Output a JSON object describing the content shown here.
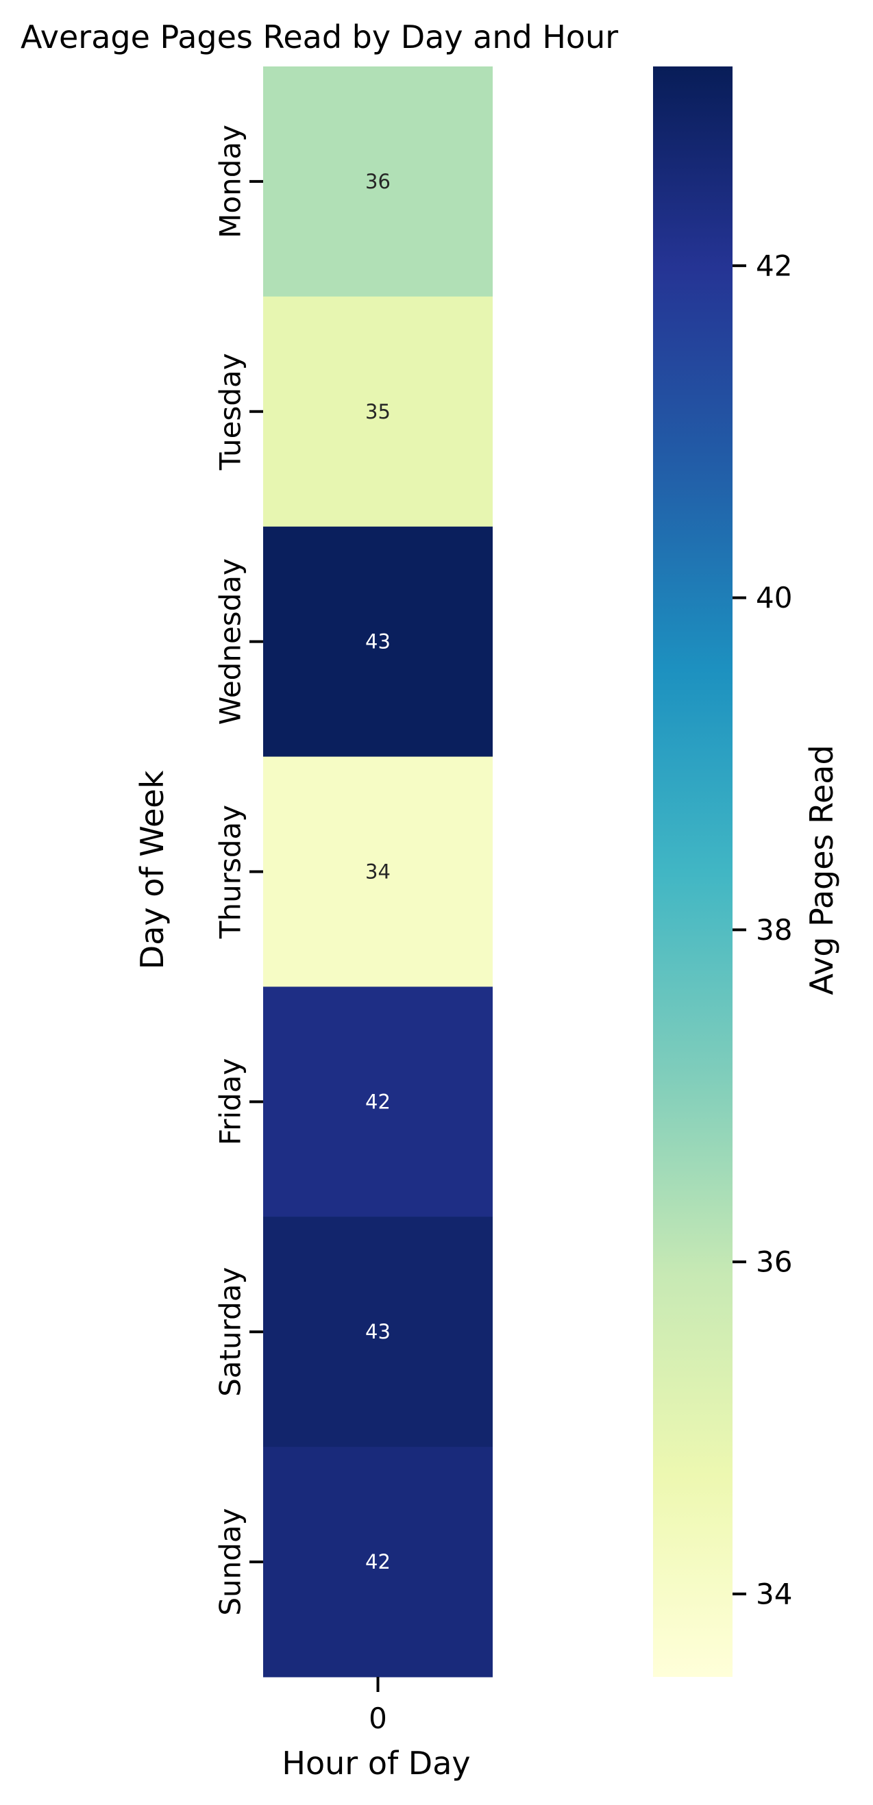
{
  "chart_data": {
    "type": "heatmap",
    "title": "Average Pages Read by Day and Hour",
    "xlabel": "Hour of Day",
    "ylabel": "Day of Week",
    "x_categories": [
      "0"
    ],
    "y_categories": [
      "Monday",
      "Tuesday",
      "Wednesday",
      "Thursday",
      "Friday",
      "Saturday",
      "Sunday"
    ],
    "values": [
      [
        36.3
      ],
      [
        34.9
      ],
      [
        43.1
      ],
      [
        34.1
      ],
      [
        42.3
      ],
      [
        42.8
      ],
      [
        42.5
      ]
    ],
    "annotations": [
      [
        "36"
      ],
      [
        "35"
      ],
      [
        "43"
      ],
      [
        "34"
      ],
      [
        "42"
      ],
      [
        "43"
      ],
      [
        "42"
      ]
    ],
    "colormap": "YlGnBu",
    "colorbar": {
      "label": "Avg Pages Read",
      "range": [
        33.5,
        43.2
      ],
      "ticks": [
        34,
        36,
        38,
        40,
        42
      ]
    },
    "colors": {
      "annotation_dark": "#262626",
      "annotation_light": "#ffffff"
    }
  }
}
